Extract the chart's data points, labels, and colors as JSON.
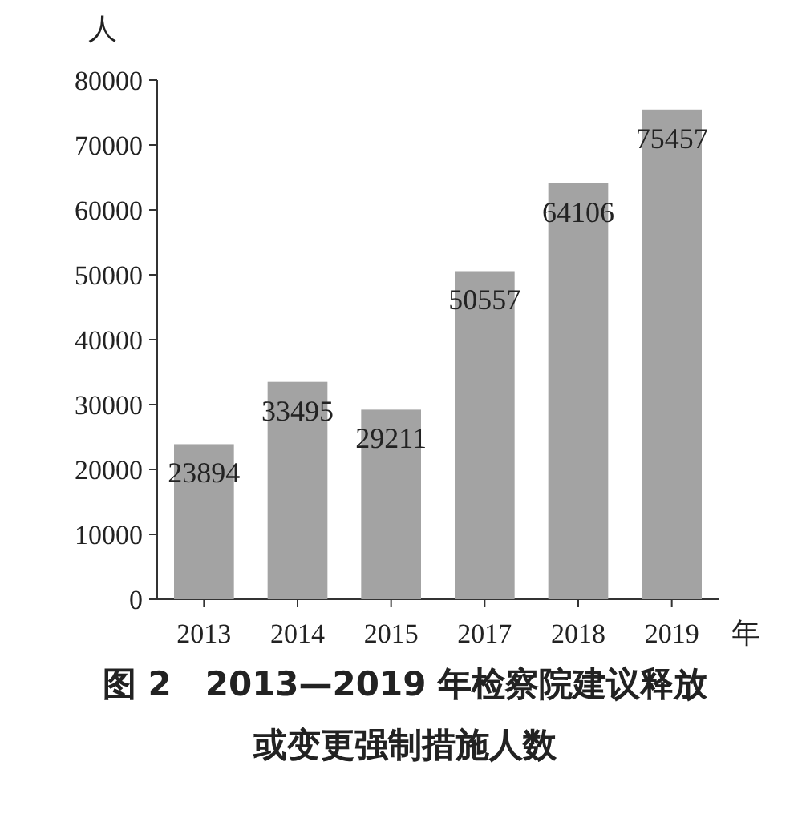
{
  "chart_data": {
    "type": "bar",
    "title": "图 2　2013—2019 年检察院建议释放或变更强制措施人数",
    "xlabel": "年",
    "ylabel": "人",
    "categories": [
      "2013",
      "2014",
      "2015",
      "2017",
      "2018",
      "2019"
    ],
    "values": [
      23894,
      33495,
      29211,
      50557,
      64106,
      75457
    ],
    "color": "#a3a3a3",
    "ylim": [
      0,
      80000
    ],
    "yticks": [
      0,
      10000,
      20000,
      30000,
      40000,
      50000,
      60000,
      70000,
      80000
    ],
    "data_labels": true
  }
}
